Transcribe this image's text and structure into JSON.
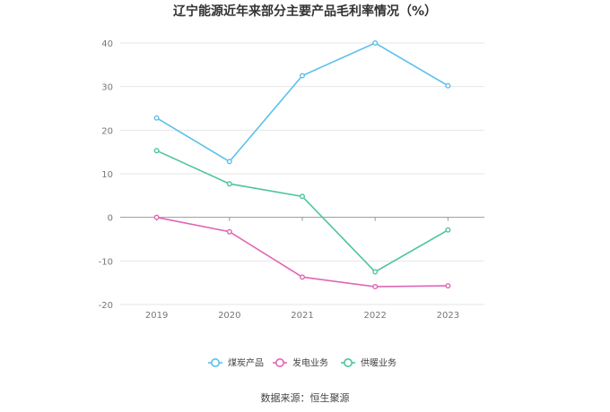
{
  "chart_data": {
    "type": "line",
    "title": "辽宁能源近年来部分主要产品毛利率情况（%）",
    "categories": [
      "2019",
      "2020",
      "2021",
      "2022",
      "2023"
    ],
    "ylim": [
      -20,
      40
    ],
    "yticks": [
      40,
      30,
      20,
      10,
      0,
      -10,
      -20
    ],
    "ytick_labels": [
      "40",
      "30",
      "20",
      "10",
      "0",
      "-10",
      "-20"
    ],
    "grid": true,
    "legend_position": "bottom-center",
    "series": [
      {
        "name": "煤炭产品",
        "color": "#5bc0eb",
        "values": [
          22.8,
          12.8,
          32.5,
          40.0,
          30.2
        ]
      },
      {
        "name": "发电业务",
        "color": "#e066b4",
        "values": [
          0.0,
          -3.3,
          -13.7,
          -15.9,
          -15.7
        ]
      },
      {
        "name": "供暖业务",
        "color": "#4cc4a0",
        "values": [
          15.3,
          7.7,
          4.8,
          -12.5,
          -2.9
        ]
      }
    ],
    "source": "数据来源：恒生聚源"
  }
}
